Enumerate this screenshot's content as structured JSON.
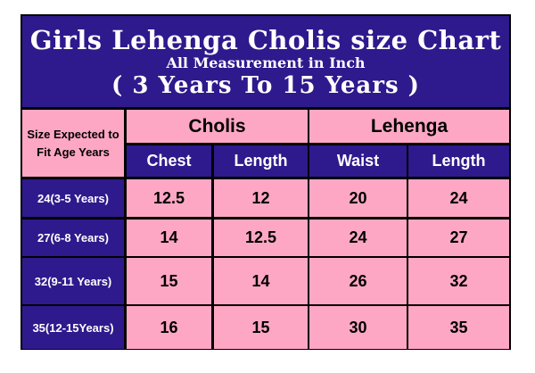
{
  "title": "Girls Lehenga Cholis size Chart",
  "subtitle": "All Measurement in Inch",
  "age_range": "( 3 Years To 15 Years )",
  "header": {
    "size_label": "Size Expected to Fit Age Years",
    "group_cholis": "Cholis",
    "group_lehenga": "Lehenga",
    "columns": [
      "Chest",
      "Length",
      "Waist",
      "Length"
    ]
  },
  "rows": [
    {
      "size": "24(3-5 Years)",
      "values": [
        "12.5",
        "12",
        "20",
        "24"
      ]
    },
    {
      "size": "27(6-8 Years)",
      "values": [
        "14",
        "12.5",
        "24",
        "27"
      ]
    },
    {
      "size": "32(9-11 Years)",
      "values": [
        "15",
        "14",
        "26",
        "32"
      ]
    },
    {
      "size": "35(12-15Years)",
      "values": [
        "16",
        "15",
        "30",
        "35"
      ]
    }
  ],
  "colors": {
    "navy": "#2e1a8c",
    "pink": "#fda7c4"
  }
}
